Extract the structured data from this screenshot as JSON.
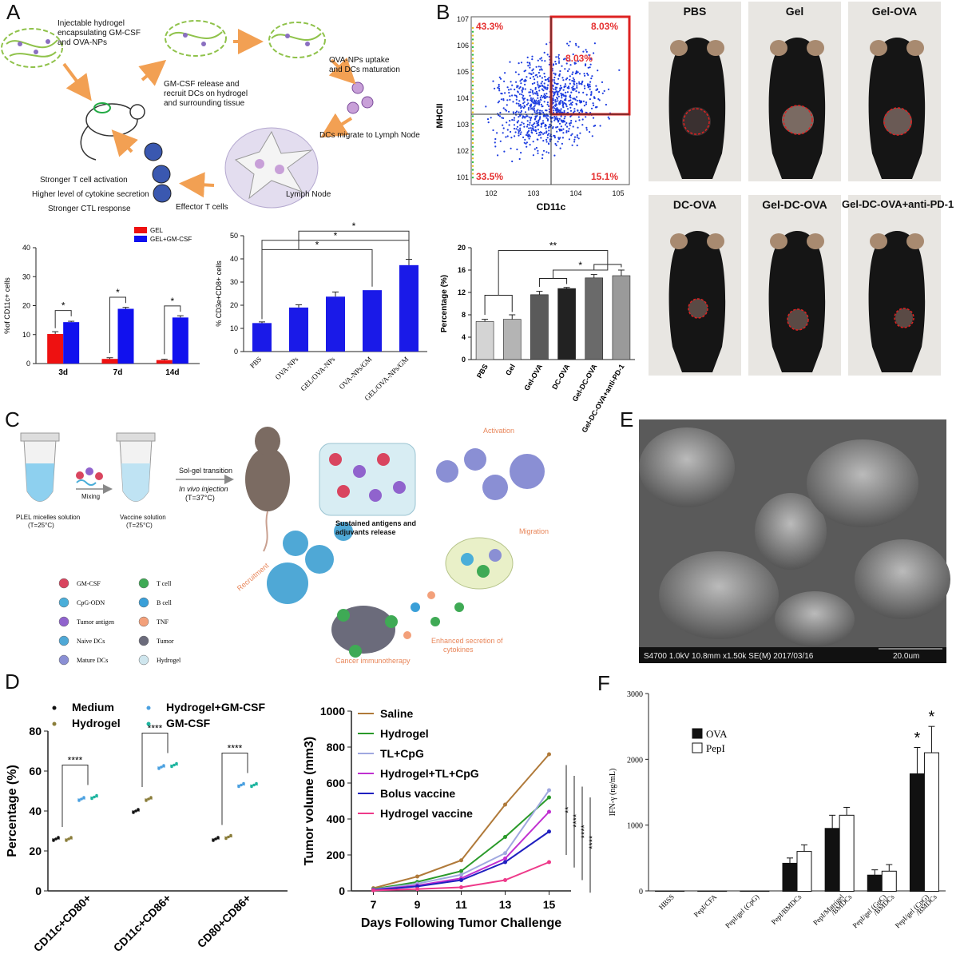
{
  "panel_labels": {
    "a": "A",
    "b": "B",
    "c": "C",
    "d": "D",
    "e": "E",
    "f": "F"
  },
  "a_schematic": {
    "texts": [
      "Injectable hydrogel",
      "encapsulating GM-CSF",
      "and OVA-NPs",
      "GM-CSF release and",
      "recruit DCs on hydrogel",
      "and surrounding tissue",
      "OVA-NPs uptake",
      "and DCs maturation",
      "DCs migrate to Lymph Node",
      "Lymph Node",
      "Effector T cells",
      "Stronger T cell activation",
      "Higher level of cytokine secretion",
      "Stronger CTL response"
    ]
  },
  "a_bar_chart": {
    "chart_data": {
      "type": "bar",
      "categories": [
        "3d",
        "7d",
        "14d"
      ],
      "series": [
        {
          "name": "GEL",
          "values": [
            10.2,
            1.6,
            1.2
          ],
          "errors": [
            0.8,
            0.4,
            0.3
          ],
          "color": "#ee1111"
        },
        {
          "name": "GEL+GM-CSF",
          "values": [
            14.3,
            18.9,
            15.9
          ],
          "errors": [
            0.3,
            0.5,
            0.6
          ],
          "color": "#1111ee"
        }
      ],
      "ylabel": "%of CD11c+ cells",
      "ylim": [
        0,
        40
      ],
      "yticks": [
        0,
        10,
        20,
        30,
        40
      ],
      "sig": [
        "*",
        "*",
        "*"
      ]
    }
  },
  "a_cd3_chart": {
    "chart_data": {
      "type": "bar",
      "categories": [
        "PBS",
        "OVA-NPs",
        "GEL/OVA-NPs",
        "OVA-NPs/GM",
        "GEL/OVA-NPs/GM"
      ],
      "values": [
        12.3,
        19.0,
        23.7,
        26.5,
        37.3
      ],
      "errors": [
        0.5,
        1.2,
        2.0,
        0.0,
        2.5
      ],
      "ylabel": "% CD3e+CD8+ cells",
      "ylim": [
        0,
        50
      ],
      "yticks": [
        0,
        10,
        20,
        30,
        40,
        50
      ],
      "sig": [
        "*",
        "*",
        "*"
      ]
    }
  },
  "b_flow": {
    "quadrants": [
      "43.3%",
      "8.03%",
      "8.03%",
      "33.5%",
      "15.1%"
    ],
    "ylabel": "MHCII",
    "xlabel": "CD11c",
    "yticks": [
      "10^1",
      "10^2",
      "10^3",
      "10^4",
      "10^5",
      "10^6",
      "10^7"
    ],
    "xticks": [
      "10^2",
      "10^3",
      "10^4",
      "10^5"
    ]
  },
  "b_bar_chart": {
    "chart_data": {
      "type": "bar",
      "categories": [
        "PBS",
        "Gel",
        "Gel-OVA",
        "DC-OVA",
        "Gel-DC-OVA",
        "Gel-DC-OVA+anti-PD-1"
      ],
      "values": [
        6.8,
        7.2,
        11.6,
        12.7,
        14.6,
        15.0
      ],
      "errors": [
        0.4,
        0.8,
        0.6,
        0.2,
        0.6,
        1.0
      ],
      "colors": [
        "#d4d4d4",
        "#b4b4b4",
        "#5a5a5a",
        "#222222",
        "#6a6a6a",
        "#9a9a9a"
      ],
      "ylabel": "Percentage (%)",
      "ylim": [
        0,
        20
      ],
      "yticks": [
        0,
        4,
        8,
        12,
        16,
        20
      ],
      "sig": [
        "**",
        "*"
      ]
    }
  },
  "b_mice": [
    "PBS",
    "Gel",
    "Gel-OVA",
    "DC-OVA",
    "Gel-DC-OVA",
    "Gel-DC-OVA+anti-PD-1"
  ],
  "c_schematic": {
    "texts": {
      "plel": "PLEL micelles solution",
      "plel_t": "(T=25°C)",
      "mixing": "Mixing",
      "vaccine": "Vaccine solution",
      "vaccine_t": "(T=25°C)",
      "solgel": "Sol-gel transition",
      "invivo": "In vivo injection",
      "invivo_t": "(T=37°C)",
      "sustained": "Sustained antigens and",
      "sustained2": "adjuvants release",
      "activation": "Activation",
      "recruitment": "Recruitment",
      "migration": "Migration",
      "enhanced": "Enhanced secretion of",
      "enhanced2": "cytokines",
      "cancer": "Cancer immunotherapy"
    },
    "legend": [
      {
        "label": "GM-CSF",
        "icon": "gm-csf-icon",
        "color": "#d9455f"
      },
      {
        "label": "CpG-ODN",
        "icon": "cpg-icon",
        "color": "#4aaed9"
      },
      {
        "label": "Tumor antigen",
        "icon": "antigen-icon",
        "color": "#9063cd"
      },
      {
        "label": "Naive DCs",
        "icon": "naive-dc-icon",
        "color": "#4fa8d6"
      },
      {
        "label": "Mature DCs",
        "icon": "mature-dc-icon",
        "color": "#8a8fd4"
      },
      {
        "label": "T cell",
        "icon": "t-cell-icon",
        "color": "#3faa55"
      },
      {
        "label": "B cell",
        "icon": "b-cell-icon",
        "color": "#3a9fd8"
      },
      {
        "label": "TNF",
        "icon": "tnf-icon",
        "color": "#f3a07a"
      },
      {
        "label": "Tumor",
        "icon": "tumor-icon",
        "color": "#6b6b7b"
      },
      {
        "label": "Hydrogel",
        "icon": "hydrogel-icon",
        "color": "#cfe6ee"
      }
    ]
  },
  "e_sem": {
    "caption": "S4700 1.0kV 10.8mm x1.50k SE(M) 2017/03/16",
    "scale": "20.0um"
  },
  "d_scatter": {
    "chart_data": {
      "type": "scatter",
      "categories": [
        "CD11c+CD80+",
        "CD11c+CD86+",
        "CD80+CD86+"
      ],
      "series": [
        {
          "name": "Medium",
          "values": [
            26,
            40,
            26
          ],
          "color": "#111111"
        },
        {
          "name": "Hydrogel",
          "values": [
            26,
            46,
            27
          ],
          "color": "#8a7d3a"
        },
        {
          "name": "Hydrogel+GM-CSF",
          "values": [
            46,
            62,
            53
          ],
          "color": "#4aa0e0"
        },
        {
          "name": "GM-CSF",
          "values": [
            47,
            63,
            53
          ],
          "color": "#1fb5a0"
        }
      ],
      "ylabel": "Percentage (%)",
      "ylim": [
        0,
        80
      ],
      "yticks": [
        0,
        20,
        40,
        60,
        80
      ],
      "sig": [
        "****",
        "****",
        "****"
      ]
    }
  },
  "d_line": {
    "chart_data": {
      "type": "line",
      "x": [
        7,
        9,
        11,
        13,
        15
      ],
      "series": [
        {
          "name": "Saline",
          "values": [
            15,
            80,
            170,
            480,
            760
          ],
          "color": "#b07a3a"
        },
        {
          "name": "Hydrogel",
          "values": [
            10,
            50,
            110,
            300,
            520
          ],
          "color": "#2a9a2a"
        },
        {
          "name": "TL+CpG",
          "values": [
            8,
            40,
            90,
            210,
            560
          ],
          "color": "#a0a8e0"
        },
        {
          "name": "Hydrogel+TL+CpG",
          "values": [
            6,
            30,
            70,
            180,
            440
          ],
          "color": "#c030d0"
        },
        {
          "name": "Bolus vaccine",
          "values": [
            5,
            25,
            60,
            160,
            330
          ],
          "color": "#2020c0"
        },
        {
          "name": "Hydrogel vaccine",
          "values": [
            3,
            10,
            20,
            60,
            160
          ],
          "color": "#ee3a8a"
        }
      ],
      "xlabel": "Days Following Tumor Challenge",
      "ylabel": "Tumor volume (mm3)",
      "ylim": [
        0,
        1000
      ],
      "yticks": [
        0,
        200,
        400,
        600,
        800,
        1000
      ],
      "sig": [
        "**",
        "****",
        "****",
        "****"
      ]
    }
  },
  "f_bar": {
    "chart_data": {
      "type": "bar",
      "categories": [
        "HBSS",
        "PepI/CFA",
        "PepI/gel (CpG)",
        "PepI/BMDCs",
        "PepI/Matrigel /BMDCs",
        "PepI/gel (GpC) /BMDCs",
        "PepI/gel (CpG) /BMDCs"
      ],
      "series": [
        {
          "name": "OVA",
          "values": [
            0,
            0,
            0,
            420,
            950,
            240,
            1780
          ],
          "errors": [
            0,
            0,
            0,
            80,
            200,
            80,
            400
          ],
          "color": "#111111"
        },
        {
          "name": "PepI",
          "values": [
            0,
            0,
            0,
            600,
            1150,
            300,
            2100
          ],
          "errors": [
            0,
            0,
            0,
            100,
            120,
            100,
            400
          ],
          "color": "#ffffff"
        }
      ],
      "ylabel": "IFN-γ (ng/mL)",
      "ylim": [
        0,
        3000
      ],
      "yticks": [
        0,
        1000,
        2000,
        3000
      ],
      "sig": [
        "*",
        "*"
      ]
    }
  }
}
